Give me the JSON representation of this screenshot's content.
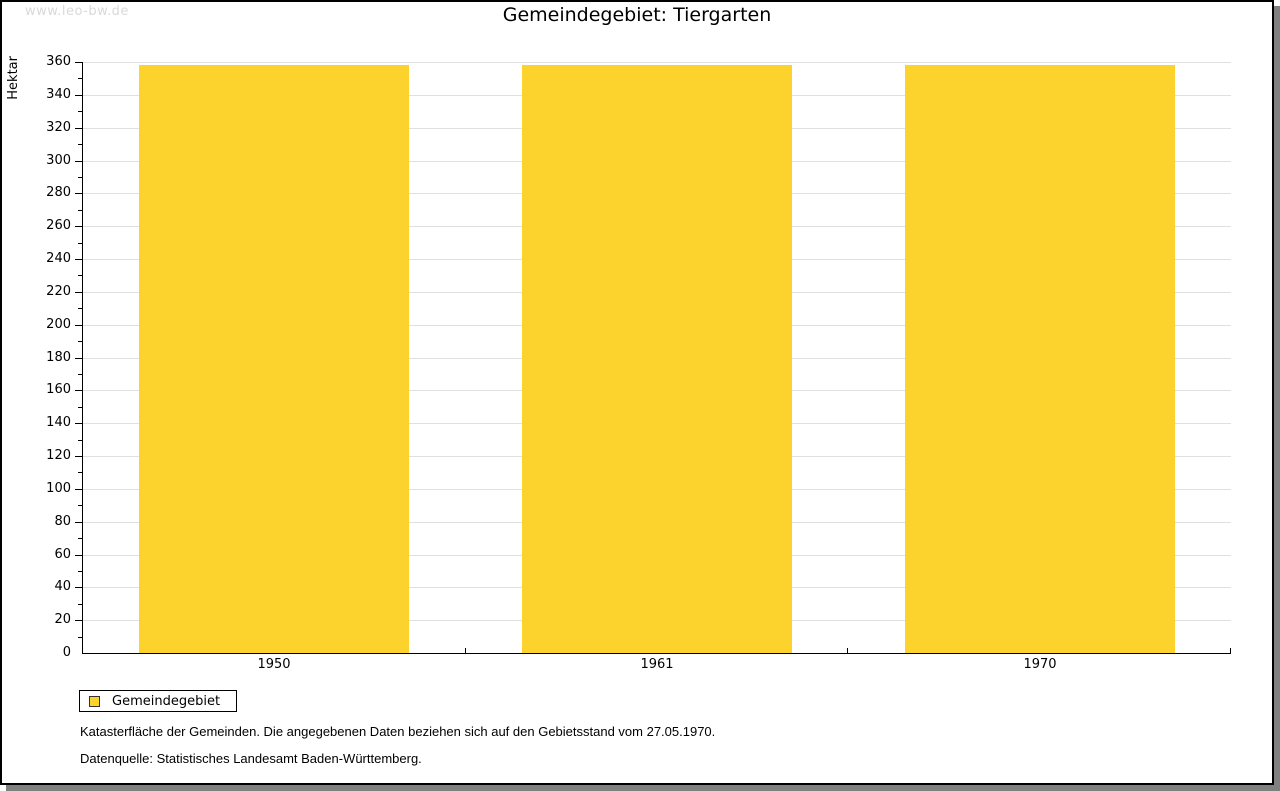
{
  "page": {
    "watermark": "www.leo-bw.de"
  },
  "chart_data": {
    "type": "bar",
    "title": "Gemeindegebiet: Tiergarten",
    "xlabel": "",
    "ylabel": "Hektar",
    "categories": [
      "1950",
      "1961",
      "1970"
    ],
    "series": [
      {
        "name": "Gemeindegebiet",
        "color": "#FCD32D",
        "values": [
          358,
          358,
          358
        ]
      }
    ],
    "ylim": [
      0,
      360
    ],
    "ytick_major": 20,
    "ytick_minor": 10,
    "grid": "horizontal-major",
    "legend_position": "bottom-left"
  },
  "legend": {
    "label": "Gemeindegebiet"
  },
  "footer": {
    "line1": "Katasterfläche der Gemeinden. Die angegebenen Daten beziehen sich auf den Gebietsstand vom 27.05.1970.",
    "line2": "Datenquelle: Statistisches Landesamt Baden-Württemberg."
  }
}
